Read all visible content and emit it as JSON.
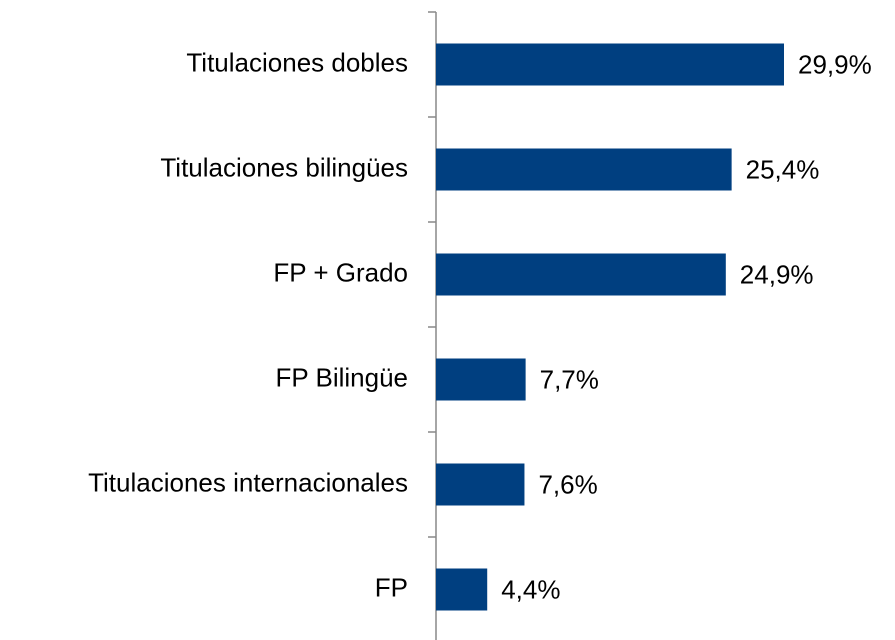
{
  "chart_data": {
    "type": "bar",
    "orientation": "horizontal",
    "categories": [
      "Titulaciones dobles",
      "Titulaciones bilingües",
      "FP + Grado",
      "FP Bilingüe",
      "Titulaciones internacionales",
      "FP"
    ],
    "values": [
      29.9,
      25.4,
      24.9,
      7.7,
      7.6,
      4.4
    ],
    "value_labels": [
      "29,9%",
      "25,4%",
      "24,9%",
      "7,7%",
      "7,6%",
      "4,4%"
    ],
    "color": "#003f80"
  }
}
